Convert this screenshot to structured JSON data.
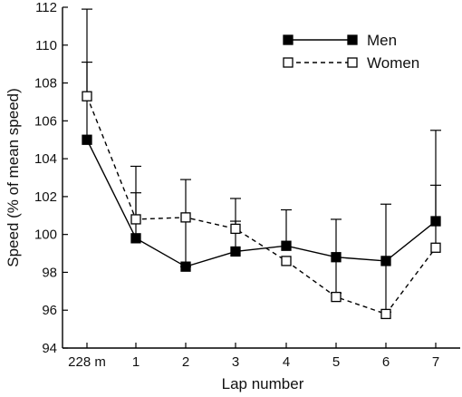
{
  "chart_data": {
    "type": "line",
    "title": "",
    "xlabel": "Lap number",
    "ylabel": "Speed (% of mean speed)",
    "categories": [
      "228 m",
      "1",
      "2",
      "3",
      "4",
      "5",
      "6",
      "7"
    ],
    "ylim": [
      94,
      112
    ],
    "yticks": [
      94,
      96,
      98,
      100,
      102,
      104,
      106,
      108,
      110,
      112
    ],
    "grid": false,
    "legend_position": "top-right",
    "series": [
      {
        "name": "Men",
        "line_style": "solid",
        "marker": "filled-square",
        "values": [
          105.0,
          99.8,
          98.3,
          99.1,
          99.4,
          98.8,
          98.6,
          100.7
        ],
        "error_upper": [
          109.1,
          102.2,
          102.9,
          100.7,
          101.3,
          100.8,
          101.6,
          102.6
        ],
        "error_lower": [
          null,
          null,
          98.3,
          null,
          null,
          96.9,
          95.9,
          null
        ]
      },
      {
        "name": "Women",
        "line_style": "dashed",
        "marker": "open-square",
        "values": [
          107.3,
          100.8,
          100.9,
          100.3,
          98.6,
          96.7,
          95.8,
          99.3
        ],
        "error_upper": [
          111.9,
          103.6,
          null,
          101.9,
          null,
          null,
          null,
          105.5
        ],
        "error_lower": [
          null,
          null,
          null,
          null,
          null,
          null,
          null,
          null
        ]
      }
    ],
    "colors": {
      "ink": "#000000",
      "open_fill": "#ffffff"
    }
  }
}
